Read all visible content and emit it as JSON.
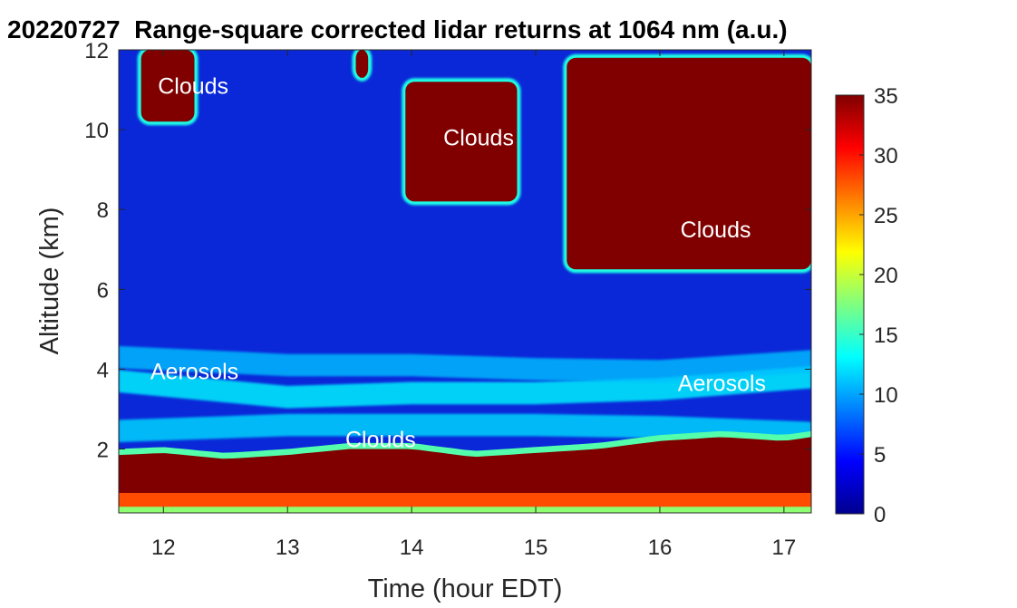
{
  "chart_data": {
    "type": "heatmap",
    "title": "20220727  Range-square corrected lidar returns at 1064 nm (a.u.)",
    "xlabel": "Time (hour EDT)",
    "ylabel": "Altitude (km)",
    "xlim": [
      11.64,
      17.22
    ],
    "ylim": [
      0.4,
      12
    ],
    "xticks": [
      "12",
      "13",
      "14",
      "15",
      "16",
      "17"
    ],
    "yticks": [
      "2",
      "4",
      "6",
      "8",
      "10",
      "12"
    ],
    "colorbar": {
      "colormap": "jet",
      "min": 0,
      "max": 35,
      "ticks": [
        "0",
        "5",
        "10",
        "15",
        "20",
        "25",
        "30",
        "35"
      ]
    },
    "annotations": [
      {
        "text": "Clouds",
        "x": 12.24,
        "y": 10.9
      },
      {
        "text": "Clouds",
        "x": 14.54,
        "y": 9.6
      },
      {
        "text": "Clouds",
        "x": 16.45,
        "y": 7.3
      },
      {
        "text": "Aerosols",
        "x": 12.25,
        "y": 3.75
      },
      {
        "text": "Aerosols",
        "x": 16.5,
        "y": 3.45
      },
      {
        "text": "Clouds",
        "x": 13.75,
        "y": 2.05
      }
    ],
    "features": {
      "boundary_layer_top_km": [
        [
          11.64,
          1.85
        ],
        [
          12.0,
          1.9
        ],
        [
          12.5,
          1.75
        ],
        [
          13.0,
          1.85
        ],
        [
          13.5,
          2.0
        ],
        [
          14.0,
          2.0
        ],
        [
          14.5,
          1.8
        ],
        [
          15.0,
          1.9
        ],
        [
          15.5,
          2.0
        ],
        [
          16.0,
          2.2
        ],
        [
          16.5,
          2.3
        ],
        [
          17.0,
          2.2
        ],
        [
          17.22,
          2.3
        ]
      ],
      "elevated_aerosol_layers_km": [
        {
          "x": [
            11.64,
            13.0,
            14.0,
            15.0,
            16.0,
            17.22
          ],
          "y": [
            3.7,
            3.3,
            3.4,
            3.4,
            3.5,
            3.8
          ],
          "level": 13
        },
        {
          "x": [
            11.64,
            13.0,
            14.0,
            15.0,
            16.0,
            17.22
          ],
          "y": [
            2.45,
            2.6,
            2.6,
            2.6,
            2.55,
            2.4
          ],
          "level": 12
        },
        {
          "x": [
            11.64,
            13.0,
            14.0,
            15.0,
            16.0,
            17.22
          ],
          "y": [
            4.3,
            4.1,
            4.1,
            4.0,
            3.95,
            4.2
          ],
          "level": 11
        }
      ],
      "cloud_regions": [
        {
          "x": [
            11.82,
            12.25
          ],
          "y": [
            10.2,
            12.0
          ]
        },
        {
          "x": [
            13.55,
            13.65
          ],
          "y": [
            11.3,
            12.0
          ]
        },
        {
          "x": [
            13.95,
            14.85
          ],
          "y": [
            8.2,
            11.2
          ]
        },
        {
          "x": [
            15.25,
            17.22
          ],
          "y": [
            6.5,
            11.8
          ]
        }
      ]
    }
  }
}
